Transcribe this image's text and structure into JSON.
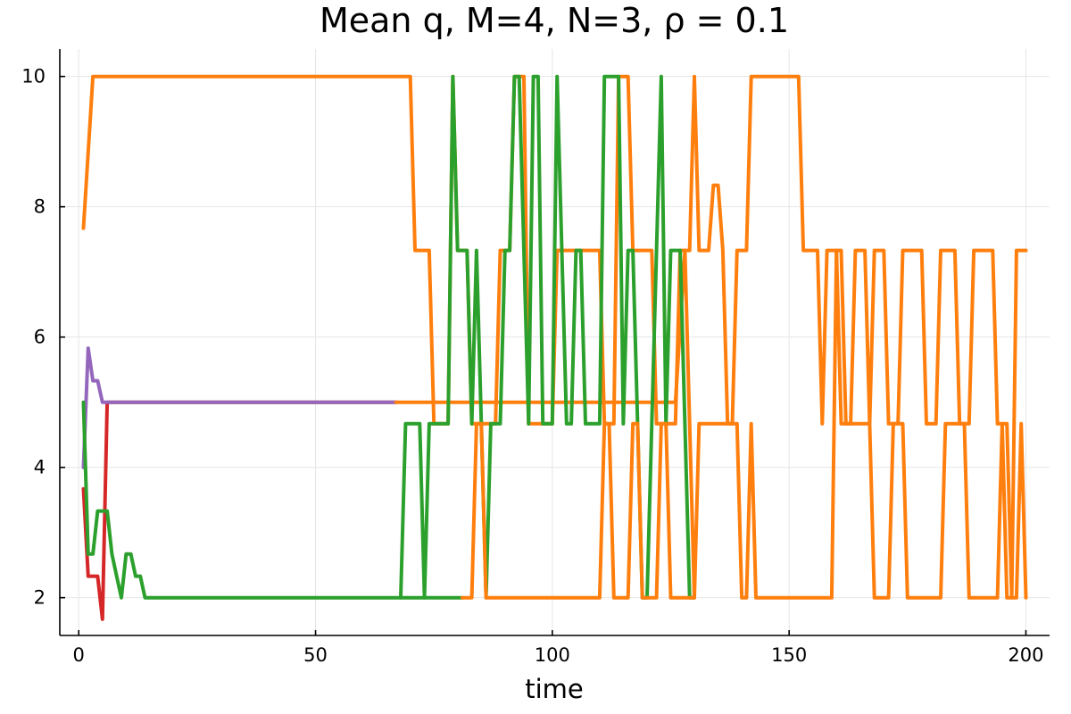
{
  "chart_data": {
    "type": "line",
    "title": "Mean q, M=4, N=3, ρ = 0.1",
    "xlabel": "time",
    "ylabel": "",
    "xlim": [
      -4,
      205
    ],
    "ylim": [
      1.42,
      10.42
    ],
    "xticks": [
      0,
      50,
      100,
      150,
      200
    ],
    "xtick_labels": [
      "0",
      "50",
      "100",
      "150",
      "200"
    ],
    "yticks": [
      2,
      4,
      6,
      8,
      10
    ],
    "ytick_labels": [
      "2",
      "4",
      "6",
      "8",
      "10"
    ],
    "grid": true,
    "legend": "none",
    "series": [
      {
        "color": "#d62728",
        "points": [
          [
            1,
            3.67
          ],
          [
            2,
            2.33
          ],
          [
            4,
            2.33
          ],
          [
            5,
            1.67
          ],
          [
            6,
            5.0
          ],
          [
            67,
            5.0
          ]
        ]
      },
      {
        "color": "#9467bd",
        "points": [
          [
            1,
            4.0
          ],
          [
            2,
            5.83
          ],
          [
            3,
            5.33
          ],
          [
            4,
            5.33
          ],
          [
            5,
            5.0
          ],
          [
            67,
            5.0
          ]
        ]
      },
      {
        "color": "#ff7f0e",
        "points": [
          [
            1,
            7.67
          ],
          [
            3,
            10.0
          ],
          [
            70,
            10.0
          ],
          [
            71,
            7.33
          ],
          [
            74,
            7.33
          ],
          [
            75,
            4.67
          ],
          [
            78,
            4.67
          ],
          [
            79,
            10.0
          ],
          [
            80,
            7.33
          ],
          [
            82,
            7.33
          ],
          [
            83,
            4.67
          ],
          [
            88,
            4.67
          ],
          [
            89,
            7.33
          ],
          [
            91,
            7.33
          ],
          [
            92,
            10.0
          ],
          [
            94,
            10.0
          ],
          [
            95,
            4.67
          ],
          [
            100,
            4.67
          ],
          [
            101,
            7.33
          ],
          [
            110,
            7.33
          ],
          [
            111,
            4.67
          ],
          [
            113,
            4.67
          ],
          [
            114,
            10.0
          ],
          [
            116,
            10.0
          ],
          [
            117,
            7.33
          ],
          [
            121,
            7.33
          ],
          [
            122,
            4.67
          ],
          [
            126,
            4.67
          ],
          [
            127,
            7.33
          ],
          [
            129,
            7.33
          ],
          [
            130,
            10.0
          ],
          [
            131,
            7.33
          ],
          [
            133,
            7.33
          ],
          [
            134,
            8.33
          ],
          [
            135,
            8.33
          ],
          [
            136,
            7.33
          ],
          [
            137,
            4.67
          ],
          [
            138,
            4.67
          ],
          [
            139,
            7.33
          ],
          [
            141,
            7.33
          ],
          [
            142,
            10.0
          ],
          [
            152,
            10.0
          ],
          [
            153,
            7.33
          ],
          [
            156,
            7.33
          ],
          [
            157,
            4.67
          ],
          [
            158,
            7.33
          ],
          [
            160,
            7.33
          ],
          [
            161,
            4.67
          ],
          [
            163,
            4.67
          ],
          [
            164,
            7.33
          ],
          [
            166,
            7.33
          ],
          [
            167,
            4.67
          ],
          [
            168,
            7.33
          ],
          [
            170,
            7.33
          ],
          [
            171,
            4.67
          ],
          [
            173,
            4.67
          ],
          [
            174,
            7.33
          ],
          [
            178,
            7.33
          ],
          [
            179,
            4.67
          ],
          [
            181,
            4.67
          ],
          [
            182,
            7.33
          ],
          [
            185,
            7.33
          ],
          [
            186,
            4.67
          ],
          [
            188,
            4.67
          ],
          [
            189,
            7.33
          ],
          [
            193,
            7.33
          ],
          [
            194,
            4.67
          ],
          [
            196,
            4.67
          ],
          [
            197,
            2.0
          ],
          [
            198,
            2.0
          ],
          [
            199,
            4.67
          ],
          [
            200,
            2.0
          ]
        ]
      },
      {
        "color": "#ff7f0e",
        "points": [
          [
            67,
            5.0
          ],
          [
            126,
            5.0
          ],
          [
            128,
            7.33
          ],
          [
            129,
            4.67
          ],
          [
            130,
            2.0
          ],
          [
            131,
            4.67
          ],
          [
            139,
            4.67
          ],
          [
            140,
            2.0
          ],
          [
            141,
            2.0
          ],
          [
            142,
            4.67
          ],
          [
            143,
            2.0
          ],
          [
            159,
            2.0
          ],
          [
            160,
            7.33
          ],
          [
            161,
            7.33
          ],
          [
            162,
            4.67
          ],
          [
            167,
            4.67
          ],
          [
            168,
            2.0
          ],
          [
            171,
            2.0
          ],
          [
            172,
            4.67
          ],
          [
            174,
            4.67
          ],
          [
            175,
            2.0
          ],
          [
            182,
            2.0
          ],
          [
            183,
            4.67
          ],
          [
            187,
            4.67
          ],
          [
            188,
            2.0
          ],
          [
            194,
            2.0
          ],
          [
            195,
            4.67
          ],
          [
            196,
            2.0
          ],
          [
            197,
            2.0
          ],
          [
            198,
            7.33
          ],
          [
            200,
            7.33
          ]
        ]
      },
      {
        "color": "#2ca02c",
        "points": [
          [
            1,
            5.0
          ],
          [
            2,
            2.67
          ],
          [
            3,
            2.67
          ],
          [
            4,
            3.33
          ],
          [
            6,
            3.33
          ],
          [
            7,
            2.67
          ],
          [
            8,
            2.33
          ],
          [
            9,
            2.0
          ],
          [
            10,
            2.67
          ],
          [
            11,
            2.67
          ],
          [
            12,
            2.33
          ],
          [
            13,
            2.33
          ],
          [
            14,
            2.0
          ],
          [
            68,
            2.0
          ],
          [
            69,
            4.67
          ],
          [
            72,
            4.67
          ],
          [
            73,
            2.0
          ],
          [
            74,
            4.67
          ],
          [
            78,
            4.67
          ],
          [
            79,
            10.0
          ],
          [
            80,
            7.33
          ],
          [
            82,
            7.33
          ],
          [
            83,
            4.67
          ],
          [
            84,
            7.33
          ],
          [
            85,
            4.67
          ],
          [
            86,
            2.0
          ],
          [
            87,
            4.67
          ],
          [
            89,
            4.67
          ],
          [
            90,
            7.33
          ],
          [
            91,
            7.33
          ],
          [
            92,
            10.0
          ],
          [
            93,
            10.0
          ],
          [
            94,
            7.33
          ],
          [
            95,
            4.67
          ],
          [
            96,
            10.0
          ],
          [
            97,
            10.0
          ],
          [
            98,
            4.67
          ],
          [
            100,
            4.67
          ],
          [
            101,
            10.0
          ],
          [
            102,
            7.33
          ],
          [
            103,
            4.67
          ],
          [
            104,
            4.67
          ],
          [
            105,
            7.33
          ],
          [
            106,
            7.33
          ],
          [
            107,
            4.67
          ],
          [
            110,
            4.67
          ],
          [
            111,
            10.0
          ],
          [
            114,
            10.0
          ],
          [
            115,
            4.67
          ],
          [
            116,
            7.33
          ],
          [
            117,
            7.33
          ],
          [
            118,
            4.67
          ],
          [
            119,
            2.0
          ],
          [
            120,
            2.0
          ],
          [
            121,
            4.67
          ],
          [
            122,
            7.33
          ],
          [
            123,
            10.0
          ],
          [
            124,
            4.67
          ],
          [
            125,
            7.33
          ],
          [
            127,
            7.33
          ],
          [
            128,
            4.67
          ],
          [
            129,
            2.0
          ],
          [
            130,
            2.0
          ]
        ]
      },
      {
        "color": "#2ca02c",
        "points": [
          [
            68,
            2.0
          ],
          [
            69,
            2.0
          ],
          [
            70,
            2.0
          ],
          [
            71,
            2.0
          ],
          [
            72,
            2.0
          ],
          [
            80,
            2.0
          ],
          [
            81,
            2.0
          ]
        ]
      },
      {
        "color": "#ff7f0e",
        "points": [
          [
            81,
            2.0
          ],
          [
            83,
            2.0
          ],
          [
            84,
            4.67
          ],
          [
            85,
            4.67
          ],
          [
            86,
            2.0
          ],
          [
            88,
            2.0
          ],
          [
            89,
            2.0
          ],
          [
            110,
            2.0
          ],
          [
            111,
            4.67
          ],
          [
            112,
            4.67
          ],
          [
            113,
            2.0
          ],
          [
            116,
            2.0
          ],
          [
            117,
            4.67
          ],
          [
            118,
            4.67
          ],
          [
            119,
            2.0
          ],
          [
            122,
            2.0
          ],
          [
            123,
            4.67
          ],
          [
            124,
            4.67
          ],
          [
            125,
            2.0
          ],
          [
            130,
            2.0
          ]
        ]
      }
    ]
  }
}
